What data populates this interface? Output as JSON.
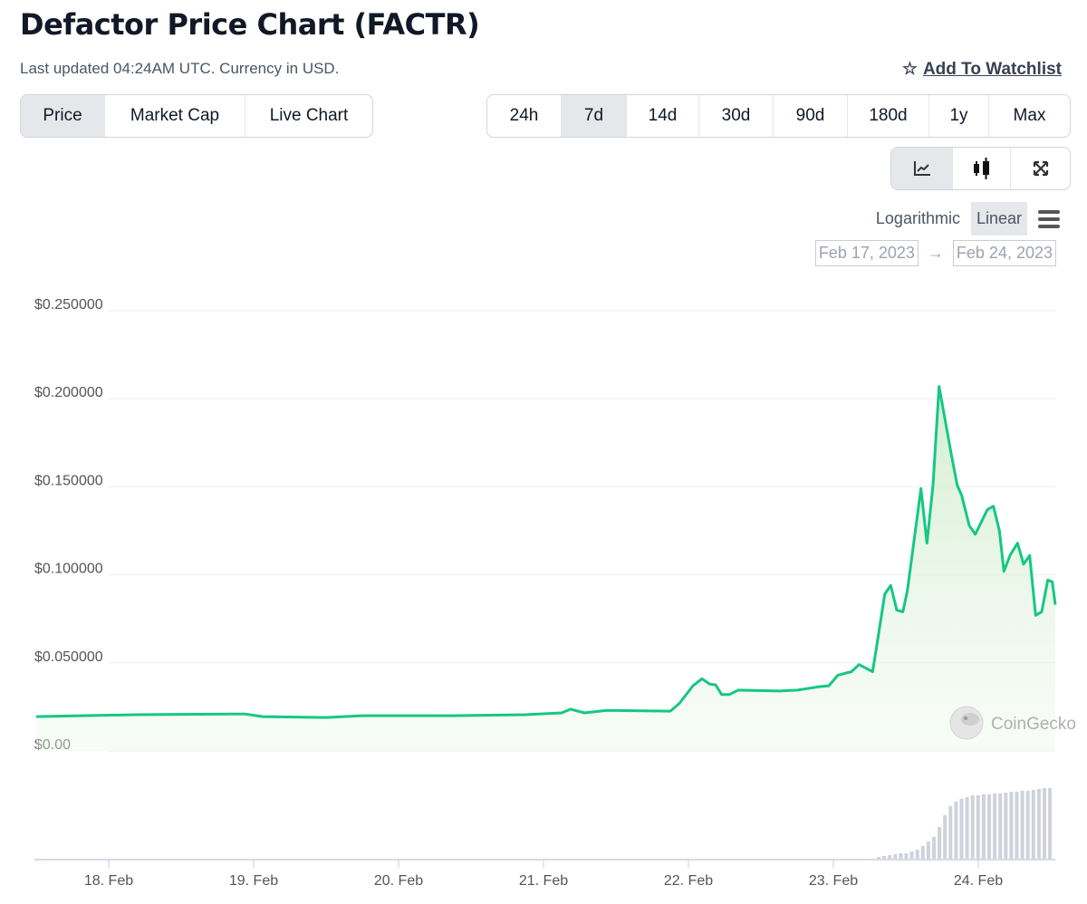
{
  "header": {
    "title": "Defactor Price Chart (FACTR)",
    "subtitle": "Last updated 04:24AM UTC. Currency in USD.",
    "watchlist": "Add To Watchlist"
  },
  "tabs": [
    {
      "label": "Price",
      "active": true
    },
    {
      "label": "Market Cap",
      "active": false
    },
    {
      "label": "Live Chart",
      "active": false
    }
  ],
  "ranges": [
    {
      "label": "24h"
    },
    {
      "label": "7d",
      "active": true
    },
    {
      "label": "14d"
    },
    {
      "label": "30d"
    },
    {
      "label": "90d"
    },
    {
      "label": "180d"
    },
    {
      "label": "1y"
    },
    {
      "label": "Max"
    }
  ],
  "chart_types": [
    {
      "icon": "line-chart-icon",
      "active": true
    },
    {
      "icon": "candlestick-icon"
    },
    {
      "icon": "fullscreen-icon"
    }
  ],
  "scale": {
    "log": "Logarithmic",
    "linear": "Linear",
    "selected": "Linear"
  },
  "date_range": {
    "from": "Feb 17, 2023",
    "arrow": "→",
    "to": "Feb 24, 2023"
  },
  "watermark": "CoinGecko",
  "colors": {
    "line": "#16c784",
    "fill": "#d8f0d4",
    "volume": "#cfd2db"
  },
  "chart_data": {
    "type": "line",
    "ylim": [
      0,
      0.25
    ],
    "yticks": [
      "$0.00",
      "$0.050000",
      "$0.100000",
      "$0.150000",
      "$0.200000",
      "$0.250000"
    ],
    "ytick_values": [
      0,
      0.05,
      0.1,
      0.15,
      0.2,
      0.25
    ],
    "xticks": [
      "18. Feb",
      "19. Feb",
      "20. Feb",
      "21. Feb",
      "22. Feb",
      "23. Feb",
      "24. Feb"
    ],
    "xtick_dates": [
      "2023-02-18",
      "2023-02-19",
      "2023-02-20",
      "2023-02-21",
      "2023-02-22",
      "2023-02-23",
      "2023-02-24"
    ],
    "xlim": [
      "2023-02-17T11:45",
      "2023-02-24T13:00"
    ],
    "grid": true,
    "price": [
      [
        "2023-02-17T12:00",
        0.0195
      ],
      [
        "2023-02-18T04:30",
        0.0206
      ],
      [
        "2023-02-18T22:30",
        0.021
      ],
      [
        "2023-02-19T01:30",
        0.0195
      ],
      [
        "2023-02-19T12:00",
        0.019
      ],
      [
        "2023-02-19T18:00",
        0.02
      ],
      [
        "2023-02-20T09:00",
        0.02
      ],
      [
        "2023-02-20T21:00",
        0.0206
      ],
      [
        "2023-02-21T03:00",
        0.0216
      ],
      [
        "2023-02-21T04:30",
        0.0237
      ],
      [
        "2023-02-21T06:45",
        0.0216
      ],
      [
        "2023-02-21T10:30",
        0.023
      ],
      [
        "2023-02-21T21:00",
        0.0226
      ],
      [
        "2023-02-21T22:30",
        0.027
      ],
      [
        "2023-02-22T00:45",
        0.037
      ],
      [
        "2023-02-22T02:15",
        0.041
      ],
      [
        "2023-02-22T03:30",
        0.038
      ],
      [
        "2023-02-22T04:30",
        0.0375
      ],
      [
        "2023-02-22T05:30",
        0.032
      ],
      [
        "2023-02-22T06:45",
        0.032
      ],
      [
        "2023-02-22T08:15",
        0.0345
      ],
      [
        "2023-02-22T15:00",
        0.034
      ],
      [
        "2023-02-22T18:00",
        0.0345
      ],
      [
        "2023-02-22T21:45",
        0.0365
      ],
      [
        "2023-02-22T23:15",
        0.037
      ],
      [
        "2023-02-23T00:45",
        0.043
      ],
      [
        "2023-02-23T03:00",
        0.045
      ],
      [
        "2023-02-23T04:15",
        0.049
      ],
      [
        "2023-02-23T06:30",
        0.045
      ],
      [
        "2023-02-23T07:15",
        0.061
      ],
      [
        "2023-02-23T08:30",
        0.089
      ],
      [
        "2023-02-23T09:30",
        0.094
      ],
      [
        "2023-02-23T10:30",
        0.08
      ],
      [
        "2023-02-23T11:30",
        0.079
      ],
      [
        "2023-02-23T12:15",
        0.091
      ],
      [
        "2023-02-23T14:30",
        0.149
      ],
      [
        "2023-02-23T15:30",
        0.118
      ],
      [
        "2023-02-23T16:30",
        0.151
      ],
      [
        "2023-02-23T17:30",
        0.207
      ],
      [
        "2023-02-23T19:30",
        0.169
      ],
      [
        "2023-02-23T20:30",
        0.151
      ],
      [
        "2023-02-23T21:15",
        0.145
      ],
      [
        "2023-02-23T22:30",
        0.128
      ],
      [
        "2023-02-23T23:30",
        0.123
      ],
      [
        "2023-02-24T00:30",
        0.13
      ],
      [
        "2023-02-24T01:30",
        0.137
      ],
      [
        "2023-02-24T02:30",
        0.139
      ],
      [
        "2023-02-24T03:30",
        0.125
      ],
      [
        "2023-02-24T04:15",
        0.102
      ],
      [
        "2023-02-24T05:15",
        0.111
      ],
      [
        "2023-02-24T06:30",
        0.118
      ],
      [
        "2023-02-24T07:30",
        0.106
      ],
      [
        "2023-02-24T08:30",
        0.111
      ],
      [
        "2023-02-24T09:30",
        0.077
      ],
      [
        "2023-02-24T10:30",
        0.079
      ],
      [
        "2023-02-24T11:30",
        0.097
      ],
      [
        "2023-02-24T12:15",
        0.096
      ],
      [
        "2023-02-24T12:45",
        0.083
      ]
    ],
    "volume_start": "2023-02-23T07:00",
    "volume_step_hours": 1,
    "volume_relative": [
      2,
      3,
      4,
      5,
      6,
      6,
      8,
      10,
      14,
      19,
      24,
      35,
      48,
      58,
      63,
      66,
      68,
      70,
      70,
      71,
      71,
      72,
      72,
      73,
      74,
      74,
      75,
      75,
      76,
      77,
      78,
      78
    ]
  }
}
